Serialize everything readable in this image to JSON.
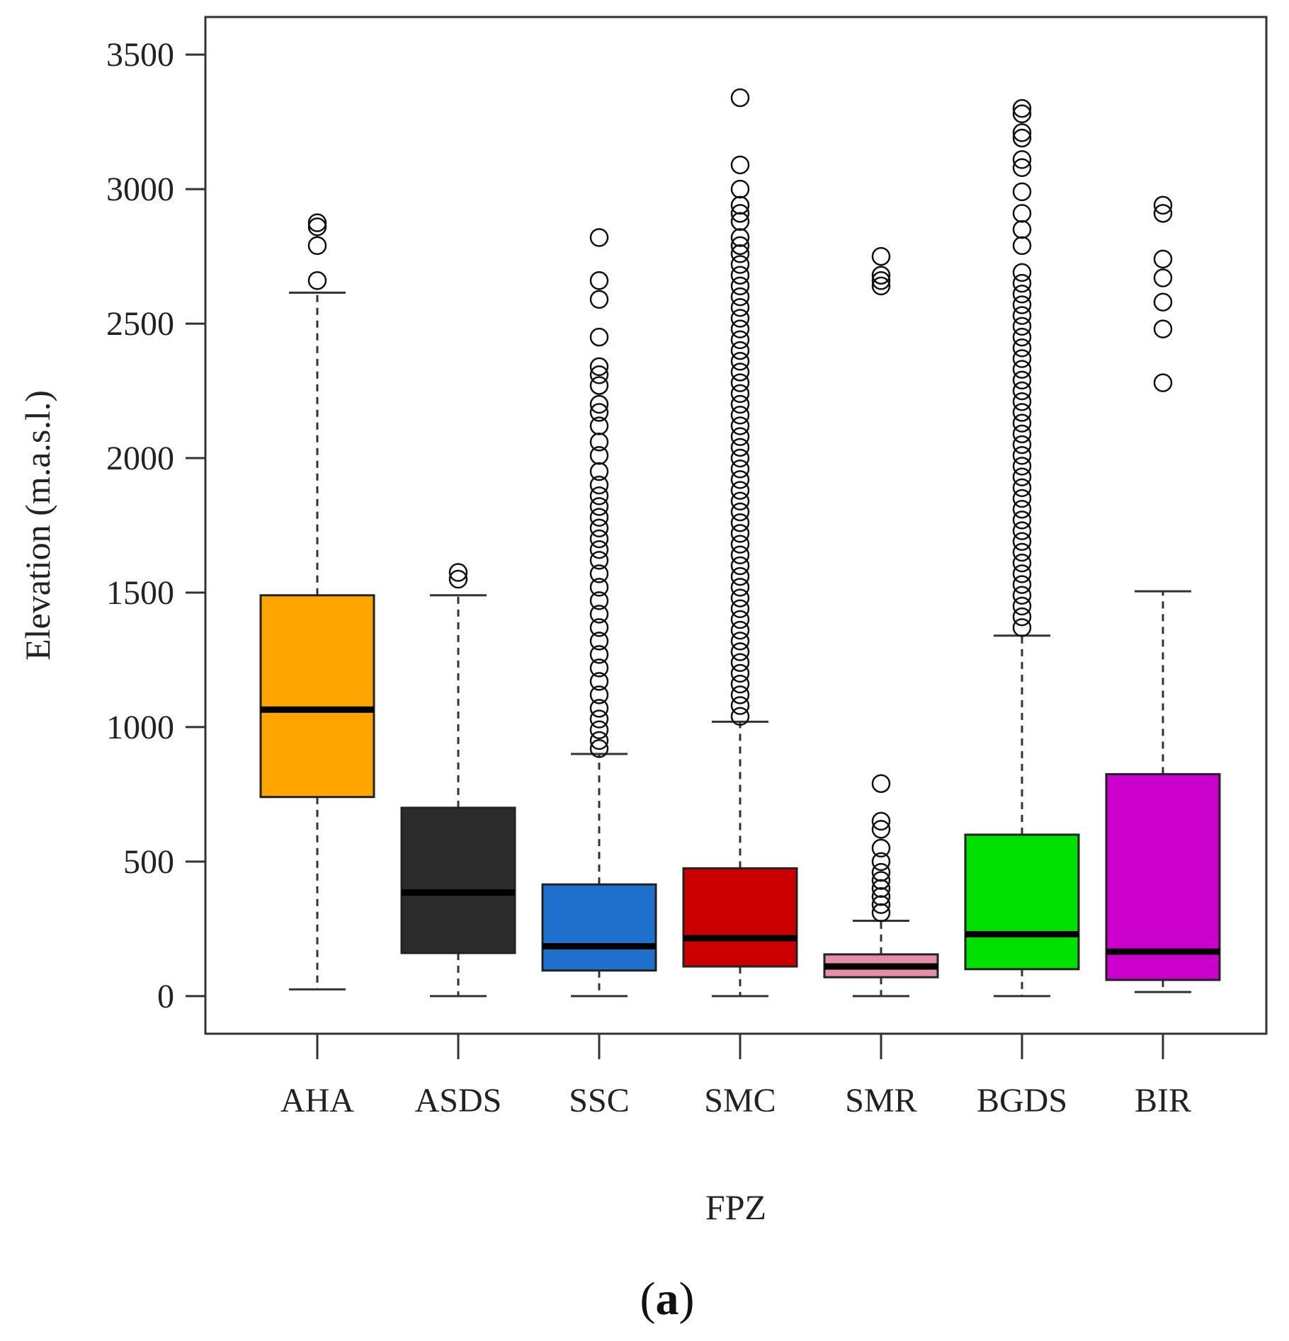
{
  "chart_data": {
    "type": "box",
    "xlabel": "FPZ",
    "ylabel": "Elevation (m.a.s.l.)",
    "ylim": [
      -140,
      3640
    ],
    "yticks": [
      0,
      500,
      1000,
      1500,
      2000,
      2500,
      3000,
      3500
    ],
    "grid": false,
    "legend": "none",
    "panel_label": {
      "open": "(",
      "letter": "a",
      "close": ")"
    },
    "categories": [
      "AHA",
      "ASDS",
      "SSC",
      "SMC",
      "SMR",
      "BGDS",
      "BIR"
    ],
    "series": [
      {
        "category": "AHA",
        "color": "#FFA500",
        "median_color": "#000000",
        "whisker_low": 25,
        "q1": 740,
        "median": 1065,
        "q3": 1490,
        "whisker_high": 2615,
        "outliers": [
          2660,
          2790,
          2860,
          2875
        ]
      },
      {
        "category": "ASDS",
        "color": "#2B2B2B",
        "median_color": "#000000",
        "whisker_low": 0,
        "q1": 160,
        "median": 385,
        "q3": 700,
        "whisker_high": 1490,
        "outliers": [
          1550,
          1575
        ]
      },
      {
        "category": "SSC",
        "color": "#1F6FCC",
        "median_color": "#000000",
        "whisker_low": 0,
        "q1": 95,
        "median": 185,
        "q3": 415,
        "whisker_high": 900,
        "outliers": [
          2820,
          2660,
          2590,
          2450,
          2340,
          2310,
          2270,
          2200,
          2170,
          2120,
          2060,
          2010,
          1950,
          1900,
          1860,
          1820,
          1780,
          1740,
          1700,
          1660,
          1620,
          1570,
          1520,
          1470,
          1420,
          1370,
          1320,
          1270,
          1220,
          1170,
          1120,
          1070,
          1030,
          990,
          950,
          920
        ]
      },
      {
        "category": "SMC",
        "color": "#CC0000",
        "median_color": "#000000",
        "whisker_low": 0,
        "q1": 110,
        "median": 215,
        "q3": 475,
        "whisker_high": 1020,
        "outliers": [
          3340,
          3090,
          3000,
          2940,
          2910,
          2880,
          2820,
          2790,
          2760,
          2720,
          2680,
          2640,
          2600,
          2560,
          2520,
          2480,
          2440,
          2400,
          2360,
          2320,
          2280,
          2240,
          2200,
          2160,
          2120,
          2080,
          2040,
          2000,
          1960,
          1920,
          1880,
          1840,
          1800,
          1760,
          1720,
          1680,
          1640,
          1600,
          1560,
          1520,
          1480,
          1440,
          1400,
          1360,
          1320,
          1280,
          1240,
          1200,
          1160,
          1120,
          1080,
          1040
        ]
      },
      {
        "category": "SMR",
        "color": "#E38FA7",
        "median_color": "#000000",
        "whisker_low": 0,
        "q1": 70,
        "median": 110,
        "q3": 155,
        "whisker_high": 280,
        "outliers": [
          2750,
          2680,
          2660,
          2640,
          790,
          650,
          620,
          550,
          500,
          460,
          430,
          400,
          370,
          340,
          310
        ]
      },
      {
        "category": "BGDS",
        "color": "#00E000",
        "median_color": "#000000",
        "whisker_low": 0,
        "q1": 100,
        "median": 230,
        "q3": 600,
        "whisker_high": 1340,
        "outliers": [
          3300,
          3280,
          3210,
          3190,
          3110,
          3080,
          2990,
          2910,
          2850,
          2790,
          2690,
          2650,
          2610,
          2570,
          2530,
          2490,
          2450,
          2410,
          2370,
          2330,
          2290,
          2250,
          2210,
          2170,
          2130,
          2090,
          2050,
          2010,
          1970,
          1930,
          1890,
          1850,
          1810,
          1770,
          1730,
          1690,
          1650,
          1610,
          1570,
          1530,
          1490,
          1450,
          1410,
          1370
        ]
      },
      {
        "category": "BIR",
        "color": "#CC00CC",
        "median_color": "#000000",
        "whisker_low": 15,
        "q1": 60,
        "median": 165,
        "q3": 825,
        "whisker_high": 1505,
        "outliers": [
          2940,
          2910,
          2740,
          2670,
          2580,
          2480,
          2280
        ]
      }
    ]
  }
}
